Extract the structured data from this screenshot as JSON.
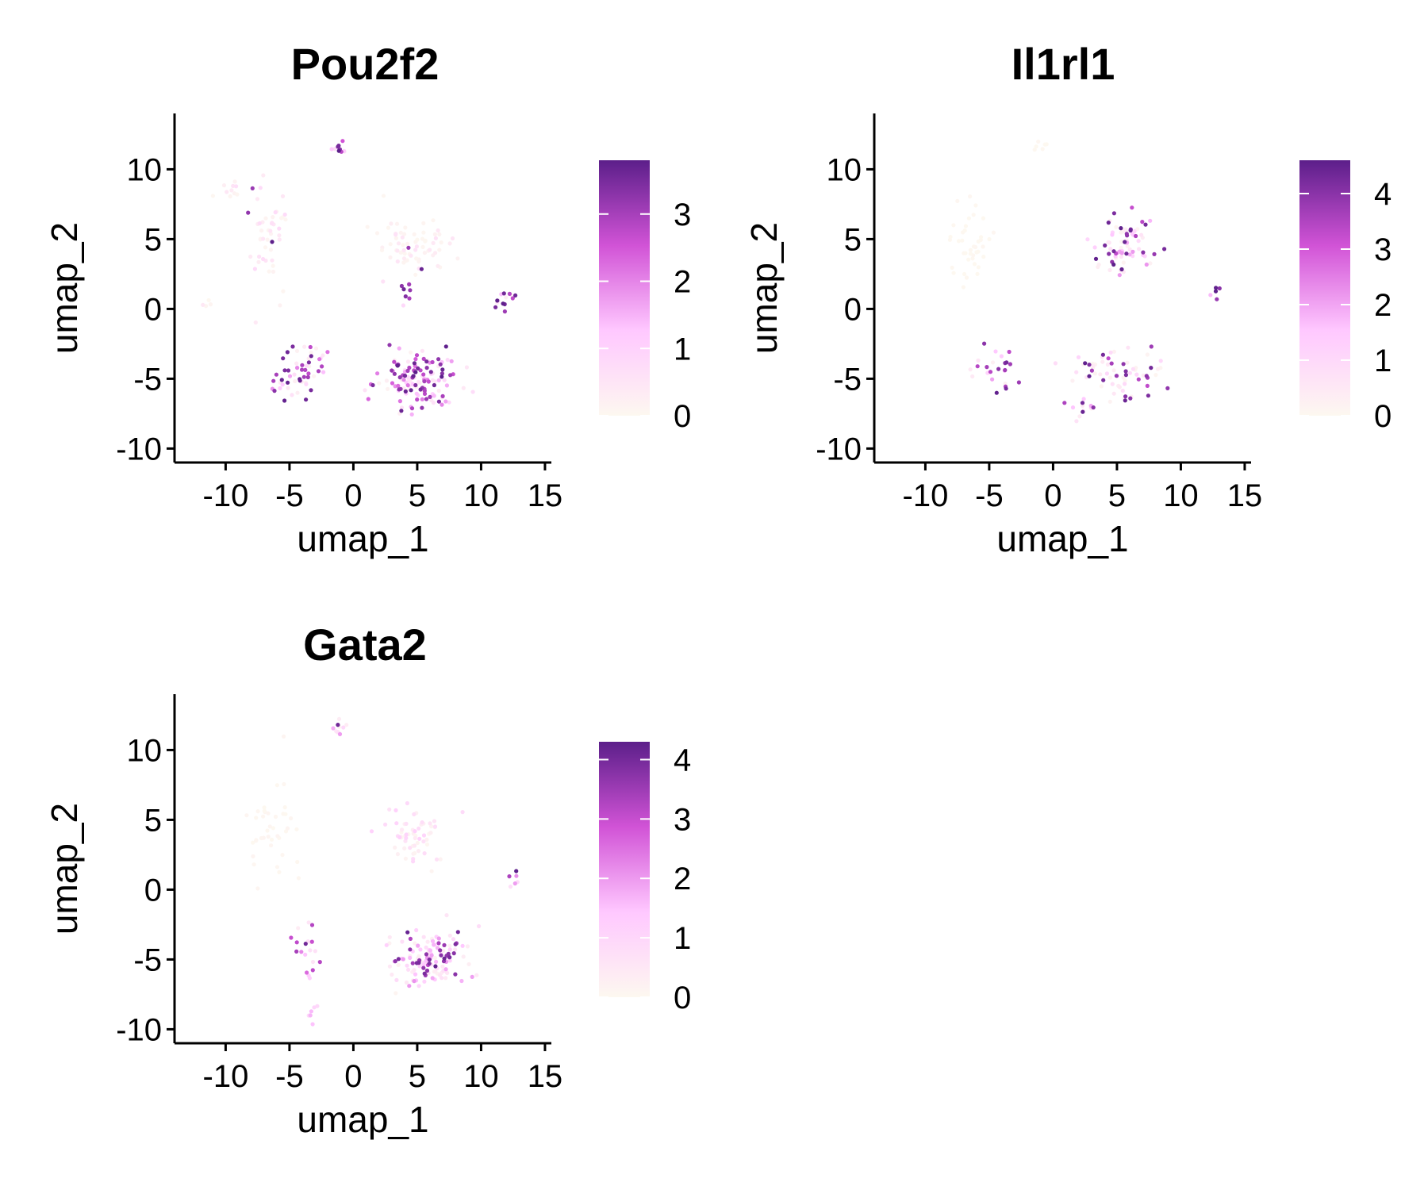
{
  "chart_data": [
    {
      "type": "scatter",
      "title": "Pou2f2",
      "xlabel": "umap_1",
      "ylabel": "umap_2",
      "xlim": [
        -14,
        15.5
      ],
      "ylim": [
        -11,
        14
      ],
      "xticks": [
        -10,
        -5,
        0,
        5,
        10,
        15
      ],
      "yticks": [
        -10,
        -5,
        0,
        5,
        10
      ],
      "colorbar": {
        "min": 0,
        "max": 3.8,
        "ticks": [
          0,
          1,
          2,
          3
        ],
        "colors": [
          "#fdf8f0",
          "#ffc8ff",
          "#d153d6",
          "#5c1f8a"
        ]
      },
      "clusters": [
        {
          "x": 4.5,
          "y": 4.5,
          "sx": 2.4,
          "sy": 2.2,
          "n": 70,
          "expr": 0.45,
          "hi": 0.06
        },
        {
          "x": 5.0,
          "y": -5.0,
          "sx": 3.0,
          "sy": 1.8,
          "n": 140,
          "expr": 1.9,
          "hi": 0.35
        },
        {
          "x": -6.5,
          "y": 5.0,
          "sx": 1.5,
          "sy": 3.0,
          "n": 45,
          "expr": 0.6,
          "hi": 0.1
        },
        {
          "x": -3.5,
          "y": -4.5,
          "sx": 1.8,
          "sy": 2.2,
          "n": 40,
          "expr": 1.7,
          "hi": 0.5
        },
        {
          "x": -1.0,
          "y": 11.5,
          "sx": 0.6,
          "sy": 0.5,
          "n": 10,
          "expr": 2.3,
          "hi": 0.4
        },
        {
          "x": 11.8,
          "y": 0.5,
          "sx": 0.9,
          "sy": 1.0,
          "n": 14,
          "expr": 2.6,
          "hi": 0.5
        },
        {
          "x": -9.0,
          "y": 8.5,
          "sx": 1.5,
          "sy": 0.6,
          "n": 12,
          "expr": 0.8,
          "hi": 0.15
        },
        {
          "x": 4.2,
          "y": 1.0,
          "sx": 0.4,
          "sy": 0.7,
          "n": 8,
          "expr": 2.8,
          "hi": 0.6
        },
        {
          "x": -5.5,
          "y": -5.5,
          "sx": 1.2,
          "sy": 1.0,
          "n": 14,
          "expr": 2.0,
          "hi": 0.4
        },
        {
          "x": -11.5,
          "y": 0.3,
          "sx": 0.4,
          "sy": 0.4,
          "n": 4,
          "expr": 0.4,
          "hi": 0.0
        }
      ]
    },
    {
      "type": "scatter",
      "title": "Il1rl1",
      "xlabel": "umap_1",
      "ylabel": "umap_2",
      "xlim": [
        -14,
        15.5
      ],
      "ylim": [
        -11,
        14
      ],
      "xticks": [
        -10,
        -5,
        0,
        5,
        10,
        15
      ],
      "yticks": [
        -10,
        -5,
        0,
        5,
        10
      ],
      "colorbar": {
        "min": 0,
        "max": 4.6,
        "ticks": [
          0,
          1,
          2,
          3,
          4
        ],
        "colors": [
          "#fdf8f0",
          "#ffc8ff",
          "#d153d6",
          "#5c1f8a"
        ]
      },
      "clusters": [
        {
          "x": 5.5,
          "y": 4.5,
          "sx": 2.0,
          "sy": 2.0,
          "n": 75,
          "expr": 1.7,
          "hi": 0.3
        },
        {
          "x": 5.0,
          "y": -5.0,
          "sx": 3.0,
          "sy": 1.8,
          "n": 70,
          "expr": 0.9,
          "hi": 0.25
        },
        {
          "x": -6.5,
          "y": 5.0,
          "sx": 1.5,
          "sy": 3.0,
          "n": 40,
          "expr": 0.05,
          "hi": 0.0
        },
        {
          "x": -4.5,
          "y": -4.0,
          "sx": 2.0,
          "sy": 1.6,
          "n": 25,
          "expr": 2.0,
          "hi": 0.5
        },
        {
          "x": 12.8,
          "y": 1.2,
          "sx": 0.5,
          "sy": 0.5,
          "n": 5,
          "expr": 2.5,
          "hi": 0.4
        },
        {
          "x": -1.0,
          "y": 11.5,
          "sx": 0.6,
          "sy": 0.5,
          "n": 6,
          "expr": 0.05,
          "hi": 0.0
        },
        {
          "x": 2.5,
          "y": -7.0,
          "sx": 1.5,
          "sy": 0.6,
          "n": 12,
          "expr": 1.5,
          "hi": 0.3
        }
      ]
    },
    {
      "type": "scatter",
      "title": "Gata2",
      "xlabel": "umap_1",
      "ylabel": "umap_2",
      "xlim": [
        -14,
        15.5
      ],
      "ylim": [
        -11,
        14
      ],
      "xticks": [
        -10,
        -5,
        0,
        5,
        10,
        15
      ],
      "yticks": [
        -10,
        -5,
        0,
        5,
        10
      ],
      "colorbar": {
        "min": 0,
        "max": 4.3,
        "ticks": [
          0,
          1,
          2,
          3,
          4
        ],
        "colors": [
          "#fdf8f0",
          "#ffc8ff",
          "#d153d6",
          "#5c1f8a"
        ]
      },
      "clusters": [
        {
          "x": 4.8,
          "y": 4.0,
          "sx": 2.2,
          "sy": 2.0,
          "n": 60,
          "expr": 0.9,
          "hi": 0.0
        },
        {
          "x": 6.0,
          "y": -5.0,
          "sx": 2.8,
          "sy": 1.8,
          "n": 140,
          "expr": 1.6,
          "hi": 0.25
        },
        {
          "x": -6.5,
          "y": 4.5,
          "sx": 1.6,
          "sy": 3.0,
          "n": 40,
          "expr": 0.1,
          "hi": 0.0
        },
        {
          "x": -3.5,
          "y": -4.5,
          "sx": 1.2,
          "sy": 2.0,
          "n": 20,
          "expr": 2.4,
          "hi": 0.5
        },
        {
          "x": -1.0,
          "y": 11.5,
          "sx": 0.6,
          "sy": 0.5,
          "n": 10,
          "expr": 1.8,
          "hi": 0.3
        },
        {
          "x": 12.5,
          "y": 0.8,
          "sx": 0.6,
          "sy": 0.6,
          "n": 6,
          "expr": 2.5,
          "hi": 0.5
        },
        {
          "x": -3.2,
          "y": -9.0,
          "sx": 0.4,
          "sy": 0.5,
          "n": 6,
          "expr": 1.4,
          "hi": 0.0
        }
      ]
    }
  ]
}
